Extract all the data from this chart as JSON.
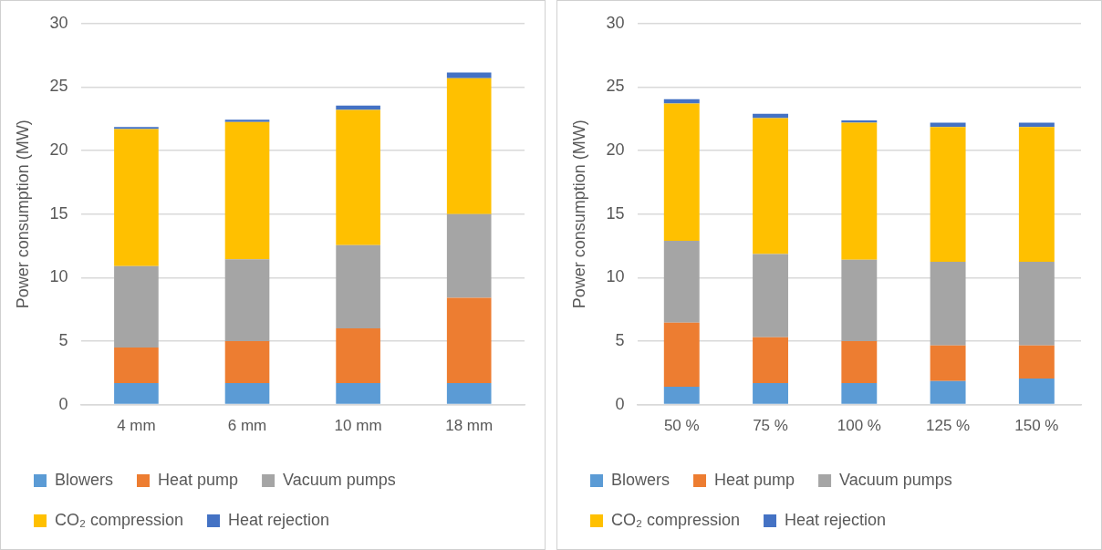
{
  "chart_data": [
    {
      "type": "bar",
      "stacked": true,
      "ylabel": "Power consumption (MW)",
      "categories": [
        "4 mm",
        "6 mm",
        "10 mm",
        "18 mm"
      ],
      "ylim": [
        0,
        30
      ],
      "yticks": [
        0,
        5,
        10,
        15,
        20,
        25,
        30
      ],
      "grid": "y",
      "legend": "bottom",
      "series": [
        {
          "name": "Blowers",
          "color": "#5b9bd5",
          "values": [
            1.7,
            1.7,
            1.7,
            1.7
          ]
        },
        {
          "name": "Heat pump",
          "color": "#ed7d31",
          "values": [
            2.8,
            3.3,
            4.3,
            6.7
          ]
        },
        {
          "name": "Vacuum pumps",
          "color": "#a5a5a5",
          "values": [
            6.4,
            6.45,
            6.55,
            6.6
          ]
        },
        {
          "name": "CO₂ compression",
          "color": "#ffc000",
          "values": [
            10.8,
            10.8,
            10.65,
            10.7
          ]
        },
        {
          "name": "Heat rejection",
          "color": "#4472c4",
          "values": [
            0.15,
            0.17,
            0.35,
            0.45
          ]
        }
      ]
    },
    {
      "type": "bar",
      "stacked": true,
      "ylabel": "Power consumption (MW)",
      "categories": [
        "50 %",
        "75 %",
        "100 %",
        "125 %",
        "150 %"
      ],
      "ylim": [
        0,
        30
      ],
      "yticks": [
        0,
        5,
        10,
        15,
        20,
        25,
        30
      ],
      "grid": "y",
      "legend": "bottom",
      "series": [
        {
          "name": "Blowers",
          "color": "#5b9bd5",
          "values": [
            1.4,
            1.7,
            1.7,
            1.85,
            2.05
          ]
        },
        {
          "name": "Heat pump",
          "color": "#ed7d31",
          "values": [
            5.05,
            3.6,
            3.3,
            2.8,
            2.6
          ]
        },
        {
          "name": "Vacuum pumps",
          "color": "#a5a5a5",
          "values": [
            6.45,
            6.55,
            6.4,
            6.6,
            6.6
          ]
        },
        {
          "name": "CO₂ compression",
          "color": "#ffc000",
          "values": [
            10.8,
            10.7,
            10.8,
            10.6,
            10.6
          ]
        },
        {
          "name": "Heat rejection",
          "color": "#4472c4",
          "values": [
            0.35,
            0.35,
            0.17,
            0.35,
            0.35
          ]
        }
      ]
    }
  ]
}
